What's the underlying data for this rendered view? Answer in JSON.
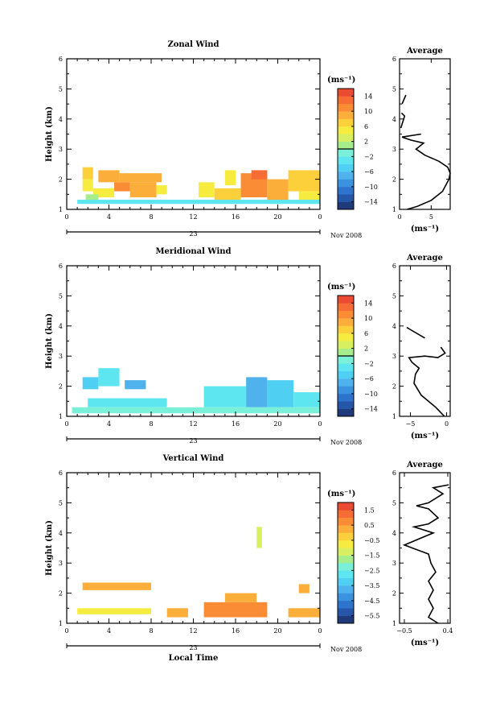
{
  "figure": {
    "x_ticks": [
      "0",
      "4",
      "8",
      "12",
      "16",
      "20",
      "0"
    ],
    "date_day": "23",
    "date_suffix": "Nov 2008",
    "xlabel": "Local Time",
    "ylabel": "Height (km)",
    "avg_title": "Average",
    "unit_label": "(ms⁻¹)"
  },
  "chart_data": [
    {
      "name": "zonal",
      "type": "heatmap",
      "title": "Zonal Wind",
      "xlabel": "",
      "ylabel": "Height (km)",
      "xlim": [
        0,
        24
      ],
      "ylim": [
        1,
        6
      ],
      "y_ticks": [
        "1",
        "2",
        "3",
        "4",
        "5",
        "6"
      ],
      "colorbar": {
        "label": "(ms⁻¹)",
        "min": -16,
        "max": 16,
        "tick_values": [
          14,
          10,
          6,
          2,
          -2,
          -6,
          -10,
          -14
        ],
        "tick_labels": [
          "14",
          "10",
          "6",
          "2",
          "−2",
          "−6",
          "−10",
          "−14"
        ],
        "colors": [
          "#1f3a7a",
          "#2656a8",
          "#2f74cc",
          "#3b93e0",
          "#4fb2ec",
          "#4fd0f2",
          "#5ee6f0",
          "#7af0d8",
          "#a6ee8c",
          "#d8f060",
          "#f6ec40",
          "#fcd03a",
          "#fcae3a",
          "#fa8c36",
          "#f66c34",
          "#ec4a32"
        ],
        "zero_line": true
      },
      "blocks": [
        {
          "x": [
            1.5,
            2.5
          ],
          "y": [
            2.0,
            2.4
          ],
          "value": 6
        },
        {
          "x": [
            1.5,
            2.5
          ],
          "y": [
            1.6,
            2.0
          ],
          "value": 4
        },
        {
          "x": [
            3.0,
            5.0
          ],
          "y": [
            1.9,
            2.3
          ],
          "value": 9
        },
        {
          "x": [
            4.5,
            6.0
          ],
          "y": [
            1.6,
            1.9
          ],
          "value": 10
        },
        {
          "x": [
            5.0,
            9.0
          ],
          "y": [
            1.9,
            2.2
          ],
          "value": 9
        },
        {
          "x": [
            6.0,
            8.5
          ],
          "y": [
            1.4,
            1.9
          ],
          "value": 8
        },
        {
          "x": [
            2.5,
            4.5
          ],
          "y": [
            1.4,
            1.7
          ],
          "value": 5
        },
        {
          "x": [
            1.8,
            3.0
          ],
          "y": [
            1.3,
            1.5
          ],
          "value": 1
        },
        {
          "x": [
            8.5,
            9.5
          ],
          "y": [
            1.5,
            1.8
          ],
          "value": 5
        },
        {
          "x": [
            12.5,
            14.0
          ],
          "y": [
            1.4,
            1.9
          ],
          "value": 5
        },
        {
          "x": [
            14.0,
            16.5
          ],
          "y": [
            1.3,
            1.7
          ],
          "value": 7
        },
        {
          "x": [
            15.0,
            16.0
          ],
          "y": [
            1.8,
            2.3
          ],
          "value": 5
        },
        {
          "x": [
            16.5,
            19.0
          ],
          "y": [
            1.4,
            2.2
          ],
          "value": 11
        },
        {
          "x": [
            19.0,
            21.0
          ],
          "y": [
            1.3,
            2.0
          ],
          "value": 9
        },
        {
          "x": [
            21.0,
            24.0
          ],
          "y": [
            1.6,
            2.3
          ],
          "value": 7
        },
        {
          "x": [
            17.5,
            19.0
          ],
          "y": [
            2.0,
            2.3
          ],
          "value": 12
        },
        {
          "x": [
            22.0,
            24.0
          ],
          "y": [
            1.3,
            1.6
          ],
          "value": 5
        },
        {
          "x": [
            1.0,
            24.0
          ],
          "y": [
            1.18,
            1.32
          ],
          "value": -3
        }
      ],
      "avg_profile": {
        "xlim": [
          0,
          8
        ],
        "x_ticks": [
          0,
          5
        ],
        "x_tick_labels": [
          "0",
          "5"
        ],
        "xlabel": "(ms⁻¹)",
        "segments": [
          [
            [
              1.2,
              1.0
            ],
            [
              2.8,
              1.1
            ],
            [
              5.0,
              1.3
            ],
            [
              6.8,
              1.6
            ],
            [
              7.8,
              2.0
            ],
            [
              8.0,
              2.2
            ],
            [
              7.6,
              2.4
            ],
            [
              6.2,
              2.6
            ],
            [
              4.0,
              2.8
            ],
            [
              2.6,
              3.0
            ],
            [
              3.8,
              3.2
            ],
            [
              1.8,
              3.3
            ],
            [
              0.4,
              3.4
            ],
            [
              3.4,
              3.5
            ]
          ],
          [
            [
              0.2,
              3.7
            ],
            [
              0.8,
              4.1
            ],
            [
              0.3,
              4.2
            ]
          ],
          [
            [
              0.4,
              4.5
            ],
            [
              1.0,
              4.8
            ]
          ]
        ]
      }
    },
    {
      "name": "meridional",
      "type": "heatmap",
      "title": "Meridional Wind",
      "xlabel": "",
      "ylabel": "Height (km)",
      "xlim": [
        0,
        24
      ],
      "ylim": [
        1,
        6
      ],
      "y_ticks": [
        "1",
        "2",
        "3",
        "4",
        "5",
        "6"
      ],
      "colorbar": {
        "label": "(ms⁻¹)",
        "min": -16,
        "max": 16,
        "tick_values": [
          14,
          10,
          6,
          2,
          -2,
          -6,
          -10,
          -14
        ],
        "tick_labels": [
          "14",
          "10",
          "6",
          "2",
          "−2",
          "−6",
          "−10",
          "−14"
        ],
        "colors": [
          "#1f3a7a",
          "#2656a8",
          "#2f74cc",
          "#3b93e0",
          "#4fb2ec",
          "#4fd0f2",
          "#5ee6f0",
          "#7af0d8",
          "#a6ee8c",
          "#d8f060",
          "#f6ec40",
          "#fcd03a",
          "#fcae3a",
          "#fa8c36",
          "#f66c34",
          "#ec4a32"
        ],
        "zero_line": true
      },
      "blocks": [
        {
          "x": [
            1.5,
            3.0
          ],
          "y": [
            1.9,
            2.3
          ],
          "value": -5
        },
        {
          "x": [
            3.0,
            5.0
          ],
          "y": [
            2.0,
            2.6
          ],
          "value": -4
        },
        {
          "x": [
            5.5,
            7.5
          ],
          "y": [
            1.9,
            2.2
          ],
          "value": -7
        },
        {
          "x": [
            2.0,
            9.5
          ],
          "y": [
            1.3,
            1.6
          ],
          "value": -3
        },
        {
          "x": [
            13.0,
            17.0
          ],
          "y": [
            1.3,
            2.0
          ],
          "value": -4
        },
        {
          "x": [
            17.0,
            19.0
          ],
          "y": [
            1.3,
            2.3
          ],
          "value": -7
        },
        {
          "x": [
            19.0,
            21.5
          ],
          "y": [
            1.3,
            2.2
          ],
          "value": -5
        },
        {
          "x": [
            21.5,
            24.0
          ],
          "y": [
            1.3,
            1.8
          ],
          "value": -3
        },
        {
          "x": [
            0.5,
            24.0
          ],
          "y": [
            1.1,
            1.3
          ],
          "value": -2
        }
      ],
      "avg_profile": {
        "xlim": [
          -6.5,
          0.5
        ],
        "x_ticks": [
          -5,
          0
        ],
        "x_tick_labels": [
          "−5",
          "0"
        ],
        "xlabel": "(ms⁻¹)",
        "segments": [
          [
            [
              -0.3,
              1.0
            ],
            [
              -1.5,
              1.3
            ],
            [
              -3.5,
              1.7
            ],
            [
              -4.5,
              2.1
            ],
            [
              -4.3,
              2.4
            ],
            [
              -3.8,
              2.6
            ],
            [
              -4.8,
              2.8
            ],
            [
              -5.2,
              2.95
            ],
            [
              -3.0,
              3.0
            ],
            [
              -1.2,
              2.95
            ],
            [
              -0.2,
              3.1
            ],
            [
              -0.8,
              3.3
            ]
          ],
          [
            [
              -3.0,
              3.6
            ],
            [
              -5.5,
              3.95
            ]
          ]
        ]
      }
    },
    {
      "name": "vertical",
      "type": "heatmap",
      "title": "Vertical Wind",
      "xlabel": "Local Time",
      "ylabel": "Height (km)",
      "xlim": [
        0,
        24
      ],
      "ylim": [
        1,
        6
      ],
      "y_ticks": [
        "1",
        "2",
        "3",
        "4",
        "5",
        "6"
      ],
      "colorbar": {
        "label": "(ms⁻¹)",
        "min": -6,
        "max": 2,
        "tick_values": [
          1.5,
          0.5,
          -0.5,
          -1.5,
          -2.5,
          -3.5,
          -4.5,
          -5.5
        ],
        "tick_labels": [
          "1.5",
          "0.5",
          "−0.5",
          "−1.5",
          "−2.5",
          "−3.5",
          "−4.5",
          "−5.5"
        ],
        "colors": [
          "#1f3a7a",
          "#2656a8",
          "#2f74cc",
          "#3b93e0",
          "#4fb2ec",
          "#4fd0f2",
          "#5ee6f0",
          "#7af0d8",
          "#a6ee8c",
          "#d8f060",
          "#f6ec40",
          "#fcd03a",
          "#fcae3a",
          "#fa8c36",
          "#f66c34",
          "#ec4a32"
        ],
        "zero_line": false
      },
      "blocks": [
        {
          "x": [
            1.5,
            8.0
          ],
          "y": [
            2.1,
            2.35
          ],
          "value": 0.1
        },
        {
          "x": [
            1.0,
            8.0
          ],
          "y": [
            1.3,
            1.5
          ],
          "value": -0.6
        },
        {
          "x": [
            9.5,
            11.5
          ],
          "y": [
            1.2,
            1.5
          ],
          "value": 0.3
        },
        {
          "x": [
            13.0,
            19.0
          ],
          "y": [
            1.2,
            1.7
          ],
          "value": 0.7
        },
        {
          "x": [
            15.0,
            18.0
          ],
          "y": [
            1.7,
            2.0
          ],
          "value": 0.3
        },
        {
          "x": [
            18.0,
            18.5
          ],
          "y": [
            3.5,
            4.2
          ],
          "value": -1.4
        },
        {
          "x": [
            21.0,
            24.0
          ],
          "y": [
            1.2,
            1.5
          ],
          "value": 0.1
        },
        {
          "x": [
            22.0,
            23.0
          ],
          "y": [
            2.0,
            2.3
          ],
          "value": 0.1
        }
      ],
      "avg_profile": {
        "xlim": [
          -0.6,
          0.45
        ],
        "x_ticks": [
          -0.5,
          0.4
        ],
        "x_tick_labels": [
          "−0.5",
          "0.4"
        ],
        "xlabel": "(ms⁻¹)",
        "segments": [
          [
            [
              0.2,
              1.0
            ],
            [
              0.0,
              1.2
            ],
            [
              0.1,
              1.5
            ],
            [
              0.0,
              1.8
            ],
            [
              0.1,
              2.1
            ],
            [
              0.0,
              2.4
            ],
            [
              0.15,
              2.7
            ],
            [
              0.05,
              3.0
            ],
            [
              0.0,
              3.3
            ],
            [
              -0.5,
              3.6
            ],
            [
              -0.2,
              3.8
            ],
            [
              0.1,
              4.0
            ],
            [
              -0.3,
              4.2
            ],
            [
              0.0,
              4.3
            ],
            [
              0.2,
              4.5
            ],
            [
              0.0,
              4.8
            ],
            [
              -0.25,
              4.9
            ],
            [
              0.0,
              5.0
            ],
            [
              0.3,
              5.3
            ],
            [
              0.1,
              5.5
            ],
            [
              0.42,
              5.6
            ]
          ]
        ]
      }
    }
  ]
}
